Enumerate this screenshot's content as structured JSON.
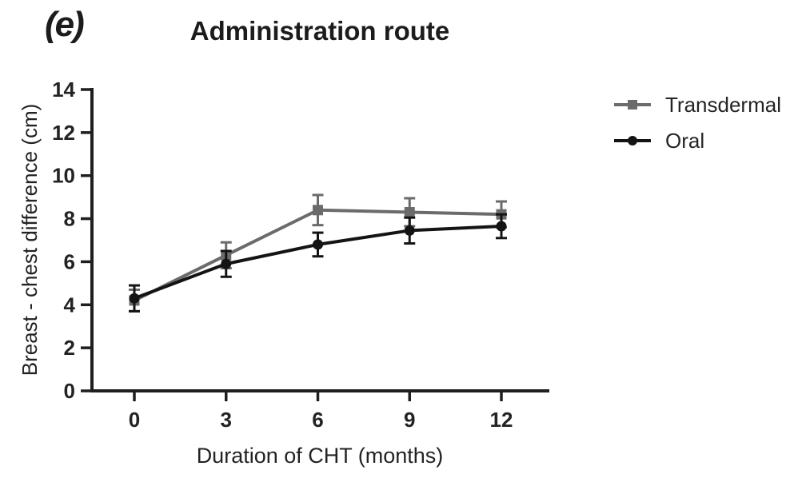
{
  "panel_label": "(e)",
  "chart_data": {
    "type": "line",
    "title": "Administration route",
    "xlabel": "Duration of CHT (months)",
    "ylabel": "Breast - chest difference (cm)",
    "x": [
      0,
      3,
      6,
      9,
      12
    ],
    "xticks": [
      0,
      3,
      6,
      9,
      12
    ],
    "yticks": [
      0,
      2,
      4,
      6,
      8,
      10,
      12,
      14
    ],
    "ylim": [
      0,
      14
    ],
    "grid": false,
    "legend_position": "right",
    "axis_color": "#1f1f1f",
    "error_bars": true,
    "series": [
      {
        "name": "Transdermal",
        "marker": "square",
        "color": "#6b6b6b",
        "values": [
          4.2,
          6.3,
          8.4,
          8.3,
          8.2
        ],
        "errors": [
          0.5,
          0.6,
          0.7,
          0.65,
          0.6
        ]
      },
      {
        "name": "Oral",
        "marker": "circle",
        "color": "#141414",
        "values": [
          4.3,
          5.9,
          6.8,
          7.45,
          7.65
        ],
        "errors": [
          0.6,
          0.6,
          0.55,
          0.6,
          0.55
        ]
      }
    ]
  }
}
